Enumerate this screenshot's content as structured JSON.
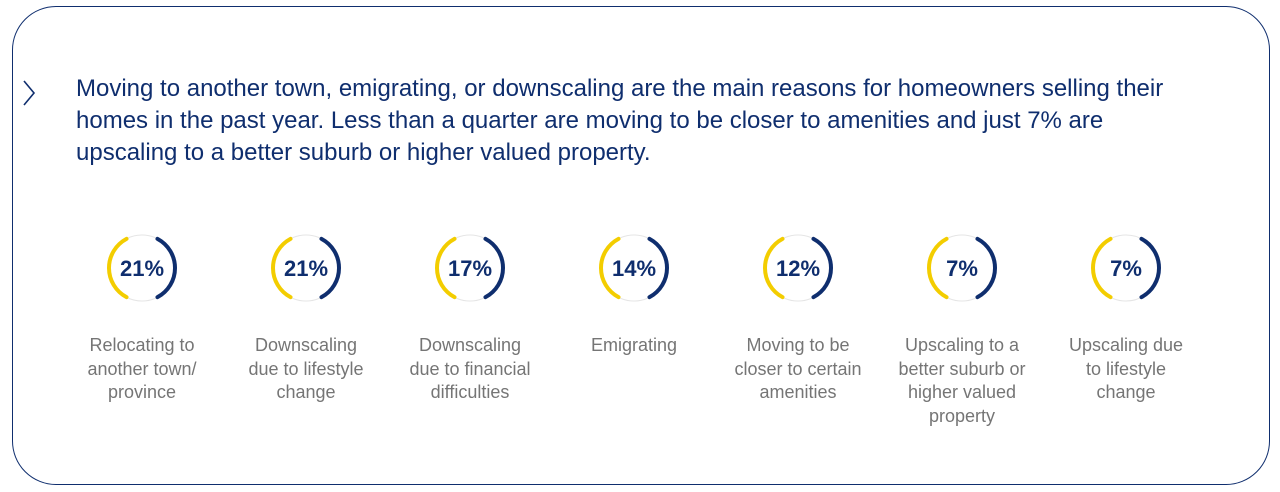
{
  "headline": "Moving to another town, emigrating, or downscaling are the main reasons for homeowners selling their homes in the past year. Less than a quarter are moving to be closer to amenities and just 7% are upscaling to a better suburb or higher valued property.",
  "colors": {
    "navy": "#0f2e6e",
    "yellow": "#f3cd00",
    "ring_track": "#e5e5e5",
    "label_grey": "#757575"
  },
  "chart_data": {
    "type": "bar",
    "unit": "%",
    "categories": [
      "Relocating to another town/ province",
      "Downscaling due to lifestyle change",
      "Downscaling due to financial difficulties",
      "Emigrating",
      "Moving to be closer to certain amenities",
      "Upscaling to a better suburb or higher valued property",
      "Upscaling due to lifestyle change"
    ],
    "values": [
      21,
      21,
      17,
      14,
      12,
      7,
      7
    ],
    "display_values": [
      "21%",
      "21%",
      "17%",
      "14%",
      "12%",
      "7%",
      "7%"
    ],
    "title": "",
    "xlabel": "",
    "ylabel": ""
  }
}
